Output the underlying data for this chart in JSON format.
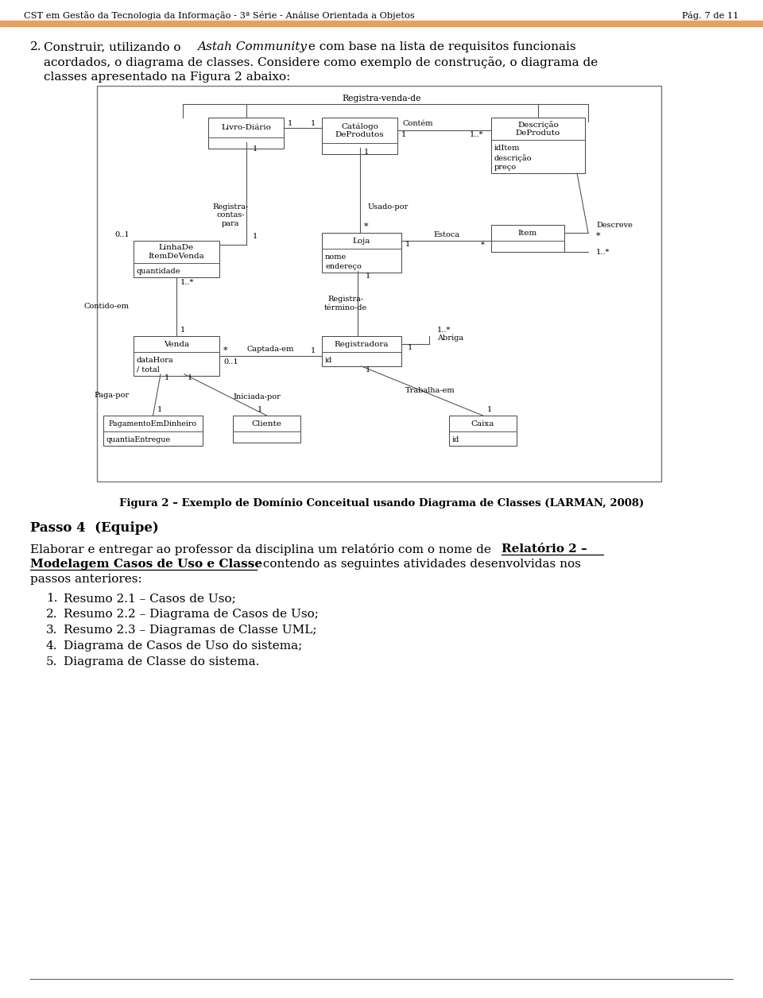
{
  "page_bg": "#ffffff",
  "header_text": "CST em Gestão da Tecnologia da Informação - 3ª Série - Análise Orientada a Objetos",
  "header_right": "Pág. 7 de 11",
  "header_bar_color": "#e8a060",
  "fig_caption": "Figura 2 – Exemplo de Domínio Conceitual usando Diagrama de Classes (LARMAN, 2008)",
  "section_title": "Passo 4  (Equipe)",
  "list_items": [
    "Resumo 2.1 – Casos de Uso;",
    "Resumo 2.2 – Diagrama de Casos de Uso;",
    "Resumo 2.3 – Diagramas de Classe UML;",
    "Diagrama de Casos de Uso do sistema;",
    "Diagrama de Classe do sistema."
  ]
}
